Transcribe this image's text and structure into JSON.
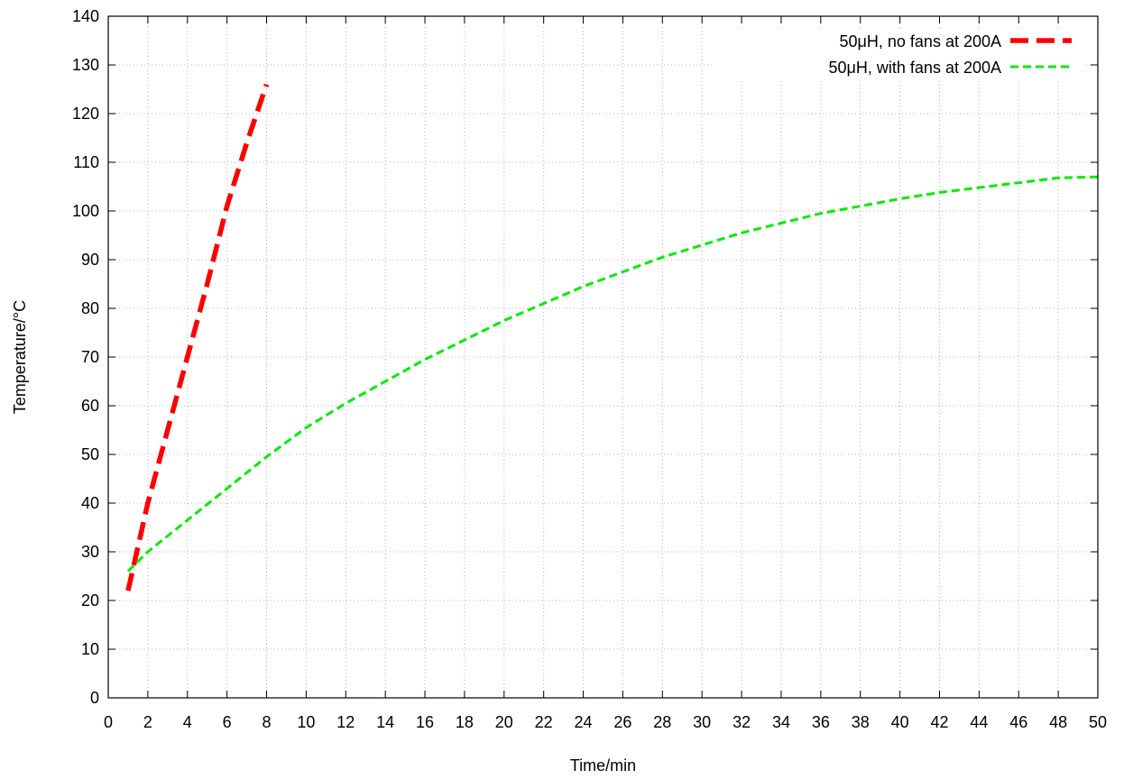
{
  "chart_data": {
    "type": "line",
    "xlabel": "Time/min",
    "ylabel": "Temperature/°C",
    "xlim": [
      0,
      50
    ],
    "ylim": [
      0,
      140
    ],
    "xticks": [
      0,
      2,
      4,
      6,
      8,
      10,
      12,
      14,
      16,
      18,
      20,
      22,
      24,
      26,
      28,
      30,
      32,
      34,
      36,
      38,
      40,
      42,
      44,
      46,
      48,
      50
    ],
    "yticks": [
      0,
      10,
      20,
      30,
      40,
      50,
      60,
      70,
      80,
      90,
      100,
      110,
      120,
      130,
      140
    ],
    "grid": true,
    "legend_position": "top-right",
    "series": [
      {
        "name": "50μH, no fans at 200A",
        "color": "#ff0000",
        "style": "long-dash",
        "x": [
          1,
          2,
          3,
          4,
          5,
          5.5,
          6,
          7,
          8
        ],
        "y": [
          22,
          40,
          55,
          70,
          85,
          93,
          101,
          114,
          126
        ]
      },
      {
        "name": "50μH, with fans at 200A",
        "color": "#00ee00",
        "style": "short-dash",
        "x": [
          1,
          2,
          4,
          6,
          8,
          10,
          12,
          14,
          16,
          18,
          20,
          22,
          24,
          26,
          28,
          30,
          32,
          34,
          36,
          38,
          40,
          42,
          44,
          46,
          48,
          50
        ],
        "y": [
          26,
          30,
          36.5,
          43,
          49.5,
          55.5,
          60.5,
          65,
          69.5,
          73.5,
          77.5,
          81,
          84.5,
          87.5,
          90.5,
          93,
          95.5,
          97.5,
          99.5,
          101,
          102.5,
          103.8,
          104.8,
          105.8,
          106.8,
          107
        ]
      }
    ]
  }
}
